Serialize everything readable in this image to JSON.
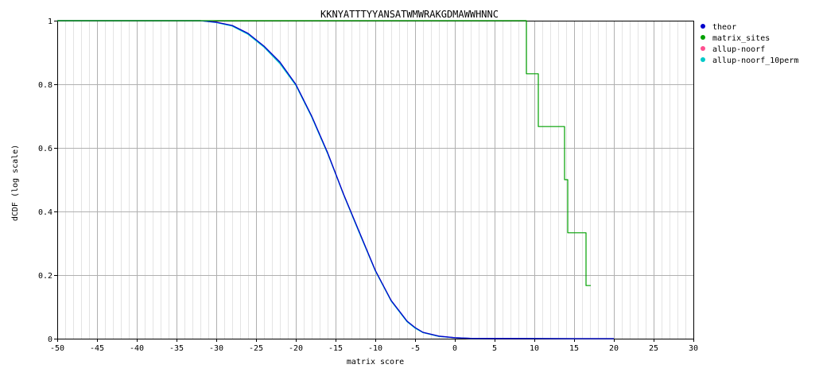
{
  "chart_data": {
    "type": "line",
    "title": "KKNYATTTYYANSATWMWRAKGDMAWWHNNC",
    "xlabel": "matrix score",
    "ylabel": "dCDF (log scale)",
    "xlim": [
      -50,
      30
    ],
    "ylim": [
      0,
      1
    ],
    "x_ticks": [
      -50,
      -45,
      -40,
      -35,
      -30,
      -25,
      -20,
      -15,
      -10,
      -5,
      0,
      5,
      10,
      15,
      20,
      25,
      30
    ],
    "y_ticks": [
      0,
      0.2,
      0.4,
      0.6,
      0.8,
      1
    ],
    "x_tick_labels": [
      "-50",
      "-45",
      "-40",
      "-35",
      "-30",
      "-25",
      "-20",
      "-15",
      "-10",
      "-5",
      "0",
      "5",
      "10",
      "15",
      "20",
      "25",
      "30"
    ],
    "y_tick_labels": [
      "0",
      "0.2",
      "0.4",
      "0.6",
      "0.8",
      "1"
    ],
    "grid": true,
    "legend_position": "top-right",
    "series": [
      {
        "name": "theor",
        "color": "#0000cc",
        "step": false,
        "x": [
          -50,
          -32,
          -30,
          -28,
          -26,
          -24,
          -22,
          -20,
          -18,
          -16,
          -15,
          -14,
          -12,
          -10,
          -8,
          -6,
          -5,
          -4,
          -2,
          0,
          2,
          5,
          10,
          15,
          17,
          20
        ],
        "y": [
          1,
          1,
          0.995,
          0.985,
          0.96,
          0.92,
          0.87,
          0.8,
          0.7,
          0.585,
          0.52,
          0.455,
          0.335,
          0.215,
          0.12,
          0.055,
          0.035,
          0.02,
          0.008,
          0.003,
          0.001,
          0.0005,
          0.0002,
          0.0001,
          5e-05,
          0
        ]
      },
      {
        "name": "matrix_sites",
        "color": "#00a000",
        "step": true,
        "x": [
          -50,
          8.8,
          9,
          10.5,
          13.8,
          14.2,
          16.5,
          17.1
        ],
        "y": [
          1,
          1,
          0.833,
          0.667,
          0.5,
          0.333,
          0.167,
          0.167
        ]
      },
      {
        "name": "allup-noorf",
        "color": "#ff4f8f",
        "step": false,
        "x": [
          -50,
          -32,
          -30,
          -28,
          -26,
          -24,
          -22,
          -20,
          -18,
          -16,
          -15,
          -14,
          -12,
          -10,
          -8,
          -6,
          -5,
          -4,
          -2,
          0,
          2,
          5,
          10,
          15,
          17,
          20
        ],
        "y": [
          1,
          1,
          0.996,
          0.984,
          0.958,
          0.918,
          0.866,
          0.798,
          0.698,
          0.583,
          0.519,
          0.454,
          0.333,
          0.214,
          0.119,
          0.054,
          0.034,
          0.019,
          0.007,
          0.003,
          0.001,
          0.0005,
          0.0002,
          0.0001,
          5e-05,
          0
        ]
      },
      {
        "name": "allup-noorf_10perm",
        "color": "#00c8c8",
        "step": false,
        "x": [
          -50,
          -32,
          -30,
          -28,
          -26,
          -24,
          -22,
          -20,
          -18,
          -16,
          -15,
          -14,
          -12,
          -10,
          -8,
          -6,
          -5,
          -4,
          -2,
          0,
          2,
          5,
          10,
          15,
          17,
          20
        ],
        "y": [
          1,
          1,
          0.994,
          0.983,
          0.957,
          0.917,
          0.865,
          0.797,
          0.697,
          0.582,
          0.518,
          0.453,
          0.332,
          0.213,
          0.118,
          0.053,
          0.033,
          0.019,
          0.007,
          0.003,
          0.001,
          0.0005,
          0.0002,
          0.0001,
          5e-05,
          0
        ]
      }
    ]
  }
}
